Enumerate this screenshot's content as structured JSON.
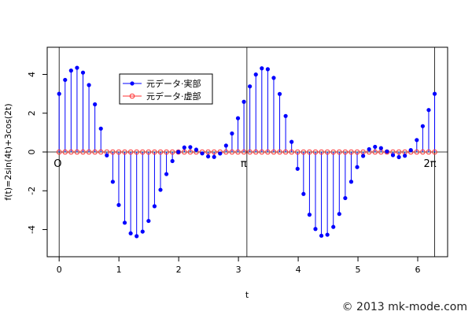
{
  "chart_data": {
    "type": "scatter",
    "function_label": "f(t)=2sin(4t)+3cos(2t)",
    "xlabel": "t",
    "ylabel": "f(t)=2sin(4t)+3cos(2t)",
    "xlim": [
      -0.2,
      6.5
    ],
    "ylim": [
      -5.4,
      5.4
    ],
    "x_ticks": [
      0,
      1,
      2,
      3,
      4,
      5,
      6
    ],
    "y_ticks": [
      -4,
      -2,
      0,
      2,
      4
    ],
    "grid": false,
    "legend_position": "top-left",
    "sample_count": 64,
    "t_start": 0,
    "t_end": 6.2832,
    "series": [
      {
        "name": "元データ·実部",
        "color": "#0000ff",
        "marker": "filled-circle",
        "style": "stem"
      },
      {
        "name": "元データ·虚部",
        "color": "#ff3333",
        "marker": "open-circle",
        "style": "stem"
      }
    ],
    "annotations": [
      {
        "text": "O",
        "x": 0,
        "y": 0
      },
      {
        "text": "π",
        "x": 3.1416,
        "y": 0
      },
      {
        "text": "2π",
        "x": 6.2832,
        "y": 0
      }
    ],
    "vertical_lines": [
      0,
      3.1416,
      6.2832
    ]
  },
  "copyright": "© 2013 mk-mode.com"
}
